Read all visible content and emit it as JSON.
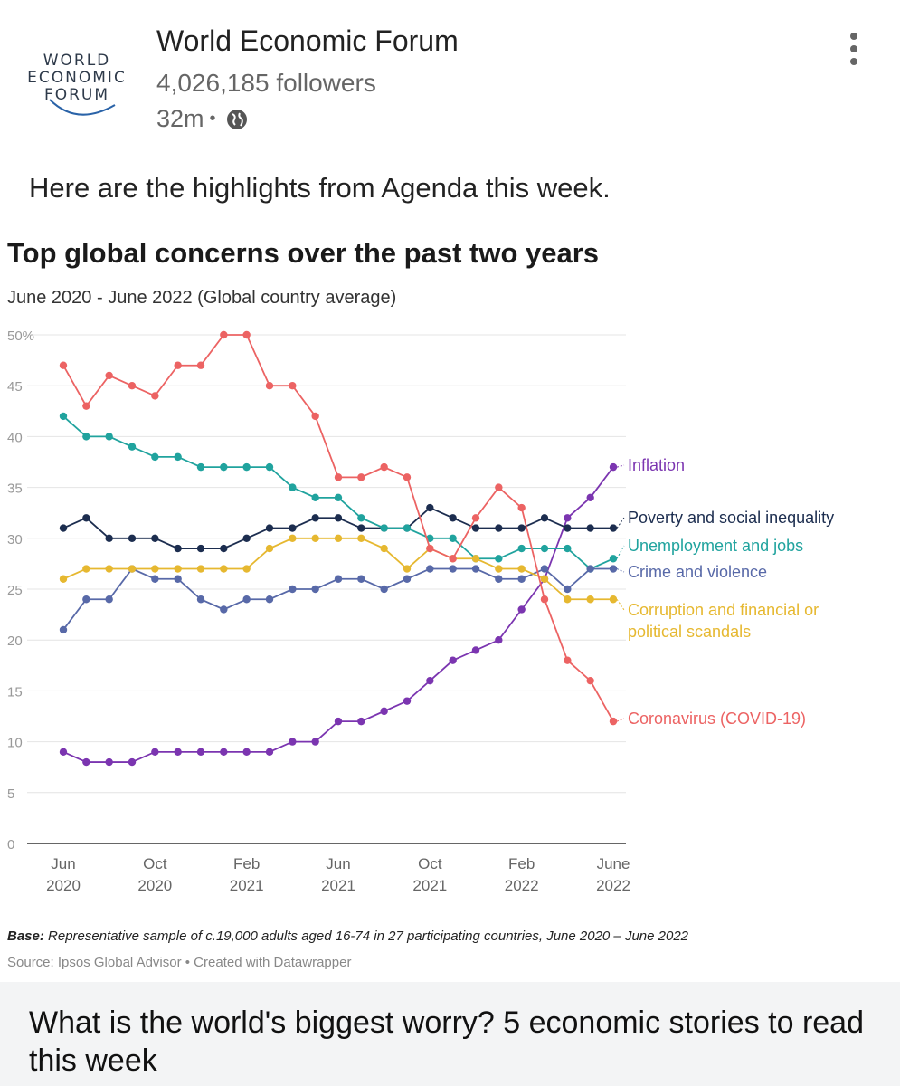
{
  "post": {
    "author": "World Economic Forum",
    "logo_lines": [
      "WORLD",
      "ECONOMIC",
      "FORUM"
    ],
    "followers": "4,026,185 followers",
    "time": "32m",
    "separator": "•",
    "visibility_icon": "globe-icon",
    "more_icon": "more-vertical-icon",
    "caption": "Here are the highlights from Agenda this week."
  },
  "article": {
    "title": "What is the world's biggest worry? 5 economic stories to read this week"
  },
  "chart_data": {
    "type": "line",
    "title": "Top global concerns over the past two years",
    "subtitle": "June 2020 - June 2022 (Global country average)",
    "x": [
      "Jun 2020",
      "Jul 2020",
      "Aug 2020",
      "Sep 2020",
      "Oct 2020",
      "Nov 2020",
      "Dec 2020",
      "Jan 2021",
      "Feb 2021",
      "Mar 2021",
      "Apr 2021",
      "May 2021",
      "Jun 2021",
      "Jul 2021",
      "Aug 2021",
      "Sep 2021",
      "Oct 2021",
      "Nov 2021",
      "Dec 2021",
      "Jan 2022",
      "Feb 2022",
      "Mar 2022",
      "Apr 2022",
      "May 2022",
      "June 2022"
    ],
    "x_ticks": [
      {
        "index": 0,
        "line1": "Jun",
        "line2": "2020"
      },
      {
        "index": 4,
        "line1": "Oct",
        "line2": "2020"
      },
      {
        "index": 8,
        "line1": "Feb",
        "line2": "2021"
      },
      {
        "index": 12,
        "line1": "Jun",
        "line2": "2021"
      },
      {
        "index": 16,
        "line1": "Oct",
        "line2": "2021"
      },
      {
        "index": 20,
        "line1": "Feb",
        "line2": "2022"
      },
      {
        "index": 24,
        "line1": "June",
        "line2": "2022"
      }
    ],
    "y_ticks": [
      "0",
      "5",
      "10",
      "15",
      "20",
      "25",
      "30",
      "35",
      "40",
      "45",
      "50%"
    ],
    "ylim": [
      0,
      50
    ],
    "grid": true,
    "legend": "direct labels at line ends (right)",
    "series": [
      {
        "name": "Inflation",
        "color": "#7b35b0",
        "values": [
          9,
          8,
          8,
          8,
          9,
          9,
          9,
          9,
          9,
          9,
          10,
          10,
          12,
          12,
          13,
          14,
          16,
          18,
          19,
          20,
          23,
          26,
          32,
          34,
          37
        ]
      },
      {
        "name": "Poverty and social inequality",
        "color": "#1c2d4f",
        "values": [
          31,
          32,
          30,
          30,
          30,
          29,
          29,
          29,
          30,
          31,
          31,
          32,
          32,
          31,
          31,
          31,
          33,
          32,
          31,
          31,
          31,
          32,
          31,
          31,
          31
        ]
      },
      {
        "name": "Unemployment and jobs",
        "color": "#20a39e",
        "values": [
          42,
          40,
          40,
          39,
          38,
          38,
          37,
          37,
          37,
          37,
          35,
          34,
          34,
          32,
          31,
          31,
          30,
          30,
          28,
          28,
          29,
          29,
          29,
          27,
          28
        ]
      },
      {
        "name": "Crime and violence",
        "color": "#5869a8",
        "values": [
          21,
          24,
          24,
          27,
          26,
          26,
          24,
          23,
          24,
          24,
          25,
          25,
          26,
          26,
          25,
          26,
          27,
          27,
          27,
          26,
          26,
          27,
          25,
          27,
          27
        ]
      },
      {
        "name": "Corruption and financial or political scandals",
        "name_lines": [
          "Corruption and financial or",
          "political scandals"
        ],
        "color": "#e6b830",
        "values": [
          26,
          27,
          27,
          27,
          27,
          27,
          27,
          27,
          27,
          29,
          30,
          30,
          30,
          30,
          29,
          27,
          29,
          28,
          28,
          27,
          27,
          26,
          24,
          24,
          24
        ]
      },
      {
        "name": "Coronavirus (COVID-19)",
        "color": "#ec6363",
        "values": [
          47,
          43,
          46,
          45,
          44,
          47,
          47,
          50,
          50,
          45,
          45,
          42,
          36,
          36,
          37,
          36,
          29,
          28,
          32,
          35,
          33,
          24,
          18,
          16,
          12
        ]
      }
    ],
    "base_label": "Base:",
    "base_text": " Representative sample of c.19,000 adults aged 16-74 in 27 participating countries, June 2020 – June 2022",
    "source": "Source: Ipsos Global Advisor • Created with Datawrapper"
  }
}
